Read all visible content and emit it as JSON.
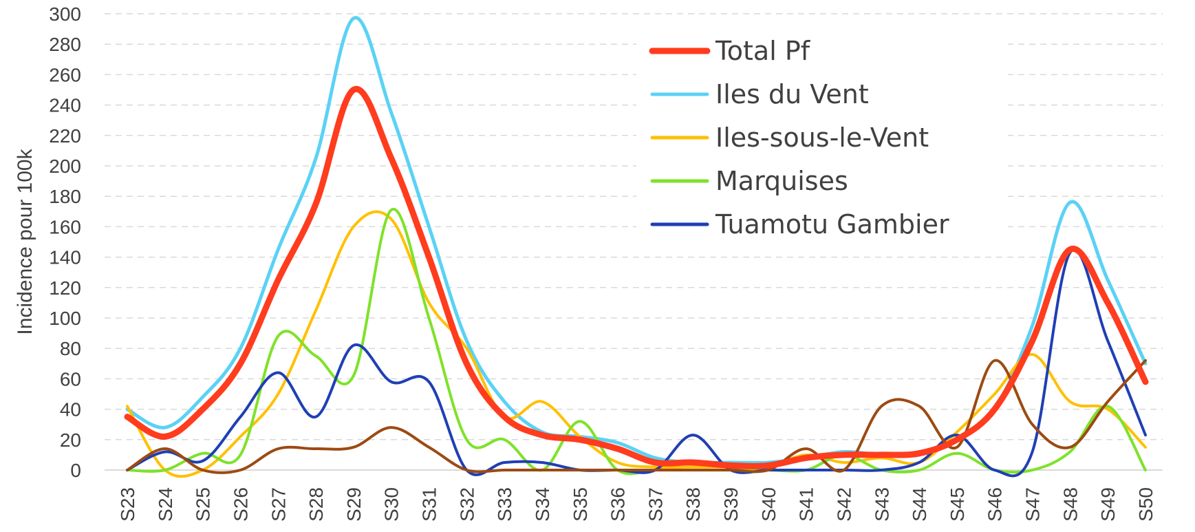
{
  "chart_data": {
    "type": "line",
    "title": "",
    "xlabel": "",
    "ylabel": "Incidence pour 100k",
    "ylim": [
      0,
      300
    ],
    "yticks": [
      0,
      20,
      40,
      60,
      80,
      100,
      120,
      140,
      160,
      180,
      200,
      220,
      240,
      260,
      280,
      300
    ],
    "grid": true,
    "legend_position": "top-center",
    "categories": [
      "S23",
      "S24",
      "S25",
      "S26",
      "S27",
      "S28",
      "S29",
      "S30",
      "S31",
      "S32",
      "S33",
      "S34",
      "S35",
      "S36",
      "S37",
      "S38",
      "S39",
      "S40",
      "S41",
      "S42",
      "S43",
      "S44",
      "S45",
      "S46",
      "S47",
      "S48",
      "S49",
      "S50"
    ],
    "series": [
      {
        "name": "Iles du Vent",
        "color": "#5ad2f5",
        "width": 5,
        "values": [
          40,
          28,
          48,
          80,
          145,
          205,
          297,
          235,
          160,
          85,
          45,
          25,
          22,
          18,
          8,
          5,
          5,
          5,
          8,
          12,
          10,
          10,
          20,
          40,
          95,
          176,
          125,
          70
        ]
      },
      {
        "name": "Iles-sous-le-Vent",
        "color": "#ffc000",
        "width": 4,
        "values": [
          42,
          0,
          0,
          22,
          50,
          105,
          160,
          165,
          110,
          80,
          35,
          45,
          22,
          5,
          2,
          2,
          2,
          2,
          10,
          5,
          8,
          5,
          25,
          50,
          76,
          45,
          40,
          15
        ]
      },
      {
        "name": "Marquises",
        "color": "#7ee22a",
        "width": 4,
        "values": [
          0,
          0,
          11,
          10,
          88,
          75,
          62,
          171,
          100,
          20,
          20,
          0,
          32,
          0,
          0,
          0,
          0,
          0,
          0,
          10,
          0,
          0,
          11,
          0,
          0,
          12,
          42,
          0
        ]
      },
      {
        "name": "Tuamotu Gambier",
        "color": "#1f3fb4",
        "width": 4,
        "values": [
          0,
          12,
          6,
          35,
          64,
          35,
          82,
          58,
          58,
          0,
          5,
          5,
          0,
          0,
          0,
          23,
          0,
          0,
          0,
          0,
          0,
          5,
          23,
          0,
          12,
          143,
          85,
          23
        ]
      },
      {
        "name": "",
        "color": "#9c4a12",
        "width": 4,
        "values": [
          0,
          14,
          0,
          0,
          14,
          14,
          15,
          28,
          15,
          0,
          0,
          0,
          0,
          0,
          0,
          0,
          0,
          0,
          14,
          0,
          42,
          42,
          15,
          72,
          30,
          15,
          45,
          72
        ]
      },
      {
        "name": "Total Pf",
        "color": "#ff3c1e",
        "width": 9,
        "values": [
          35,
          22,
          40,
          70,
          125,
          175,
          250,
          205,
          140,
          70,
          35,
          23,
          20,
          14,
          5,
          5,
          3,
          3,
          8,
          10,
          10,
          11,
          20,
          40,
          85,
          145,
          110,
          58
        ]
      }
    ],
    "legend": [
      {
        "name": "Total Pf",
        "color": "#ff3c1e",
        "width": 9
      },
      {
        "name": "Iles du Vent",
        "color": "#5ad2f5",
        "width": 5
      },
      {
        "name": "Iles-sous-le-Vent",
        "color": "#ffc000",
        "width": 5
      },
      {
        "name": "Marquises",
        "color": "#7ee22a",
        "width": 5
      },
      {
        "name": "Tuamotu Gambier",
        "color": "#1f3fb4",
        "width": 5
      }
    ]
  }
}
